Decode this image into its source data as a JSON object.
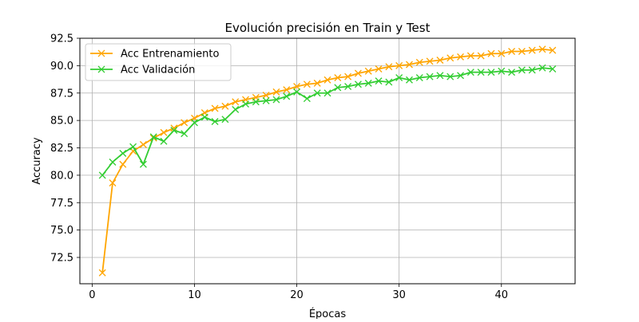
{
  "chart_data": {
    "type": "line",
    "title": "Evolución precisión en Train y Test",
    "xlabel": "Épocas",
    "ylabel": "Accuracy",
    "xlim": [
      -1.2,
      47.2
    ],
    "ylim": [
      70.1,
      92.5
    ],
    "xticks": [
      0,
      10,
      20,
      30,
      40
    ],
    "yticks": [
      72.5,
      75.0,
      77.5,
      80.0,
      82.5,
      85.0,
      87.5,
      90.0,
      92.5
    ],
    "grid": true,
    "legend_position": "top-left",
    "x": [
      1,
      2,
      3,
      4,
      5,
      6,
      7,
      8,
      9,
      10,
      11,
      12,
      13,
      14,
      15,
      16,
      17,
      18,
      19,
      20,
      21,
      22,
      23,
      24,
      25,
      26,
      27,
      28,
      29,
      30,
      31,
      32,
      33,
      34,
      35,
      36,
      37,
      38,
      39,
      40,
      41,
      42,
      43,
      44,
      45
    ],
    "series": [
      {
        "name": "Acc Entrenamiento",
        "color": "#ffa500",
        "marker": "x",
        "values": [
          71.1,
          79.3,
          81.0,
          82.2,
          82.8,
          83.4,
          83.9,
          84.3,
          84.8,
          85.2,
          85.7,
          86.1,
          86.3,
          86.7,
          86.9,
          87.1,
          87.3,
          87.6,
          87.8,
          88.1,
          88.3,
          88.4,
          88.7,
          88.9,
          89.0,
          89.3,
          89.5,
          89.7,
          89.9,
          90.0,
          90.1,
          90.3,
          90.4,
          90.5,
          90.7,
          90.8,
          90.9,
          90.9,
          91.1,
          91.1,
          91.3,
          91.3,
          91.4,
          91.5,
          91.4
        ]
      },
      {
        "name": "Acc Validación",
        "color": "#32cd32",
        "marker": "x",
        "values": [
          80.0,
          81.2,
          82.0,
          82.6,
          81.0,
          83.5,
          83.1,
          84.1,
          83.8,
          84.8,
          85.3,
          84.9,
          85.1,
          86.0,
          86.5,
          86.7,
          86.8,
          86.9,
          87.2,
          87.6,
          87.0,
          87.5,
          87.5,
          88.0,
          88.1,
          88.3,
          88.4,
          88.6,
          88.5,
          88.9,
          88.7,
          88.9,
          89.0,
          89.1,
          89.0,
          89.1,
          89.4,
          89.4,
          89.4,
          89.5,
          89.4,
          89.6,
          89.6,
          89.8,
          89.7
        ]
      }
    ]
  }
}
